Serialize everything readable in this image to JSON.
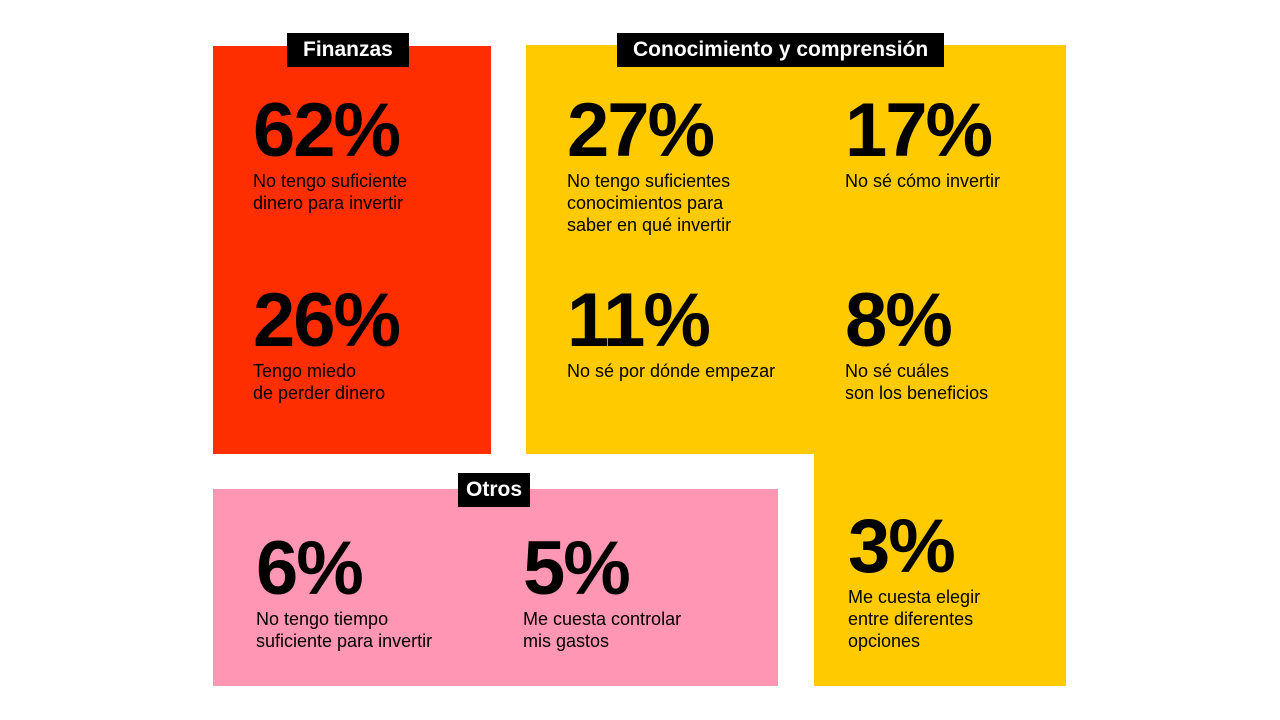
{
  "colors": {
    "finanzas": "#ff2e00",
    "conocimiento": "#ffcb00",
    "otros": "#ff96b4",
    "label_bg": "#000000"
  },
  "groups": {
    "finanzas": {
      "title": "Finanzas",
      "stats": [
        {
          "value": "62%",
          "text": "No tengo suficiente\ndinero para invertir"
        },
        {
          "value": "26%",
          "text": "Tengo miedo\nde perder dinero"
        }
      ]
    },
    "conocimiento": {
      "title": "Conocimiento y comprensión",
      "stats": [
        {
          "value": "27%",
          "text": "No tengo suficientes\nconocimientos para\nsaber en qué invertir"
        },
        {
          "value": "17%",
          "text": "No sé cómo invertir"
        },
        {
          "value": "11%",
          "text": "No sé por dónde empezar"
        },
        {
          "value": "8%",
          "text": "No sé cuáles\nson los beneficios"
        },
        {
          "value": "3%",
          "text": "Me cuesta elegir\nentre diferentes\nopciones"
        }
      ]
    },
    "otros": {
      "title": "Otros",
      "stats": [
        {
          "value": "6%",
          "text": "No tengo tiempo\nsuficiente para invertir"
        },
        {
          "value": "5%",
          "text": "Me cuesta controlar\nmis gastos"
        }
      ]
    }
  }
}
